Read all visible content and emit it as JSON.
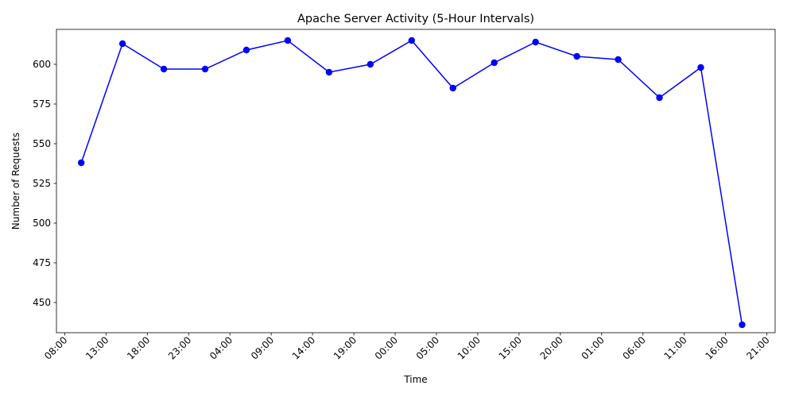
{
  "chart_data": {
    "type": "line",
    "title": "Apache Server Activity (5-Hour Intervals)",
    "xlabel": "Time",
    "ylabel": "Number of Requests",
    "x_ticks": [
      "08:00",
      "13:00",
      "18:00",
      "23:00",
      "04:00",
      "09:00",
      "14:00",
      "19:00",
      "00:00",
      "05:00",
      "10:00",
      "15:00",
      "20:00",
      "01:00",
      "06:00",
      "11:00",
      "16:00",
      "21:00"
    ],
    "y_ticks": [
      450,
      475,
      500,
      525,
      550,
      575,
      600
    ],
    "ylim": [
      431,
      622
    ],
    "x_start": "day1 07:00",
    "x_end": "day4 22:00",
    "grid": false,
    "legend": "none",
    "line_color": "#0000ff",
    "series": [
      {
        "x": [
          "day1 10:00",
          "day1 15:00",
          "day1 20:00",
          "day2 01:00",
          "day2 06:00",
          "day2 11:00",
          "day2 16:00",
          "day2 21:00",
          "day3 02:00",
          "day3 07:00",
          "day3 12:00",
          "day3 17:00",
          "day3 22:00",
          "day4 03:00",
          "day4 08:00",
          "day4 13:00",
          "day4 18:00"
        ],
        "values": [
          538,
          613,
          597,
          597,
          609,
          615,
          595,
          600,
          615,
          585,
          601,
          614,
          605,
          603,
          579,
          598,
          436
        ]
      }
    ]
  }
}
